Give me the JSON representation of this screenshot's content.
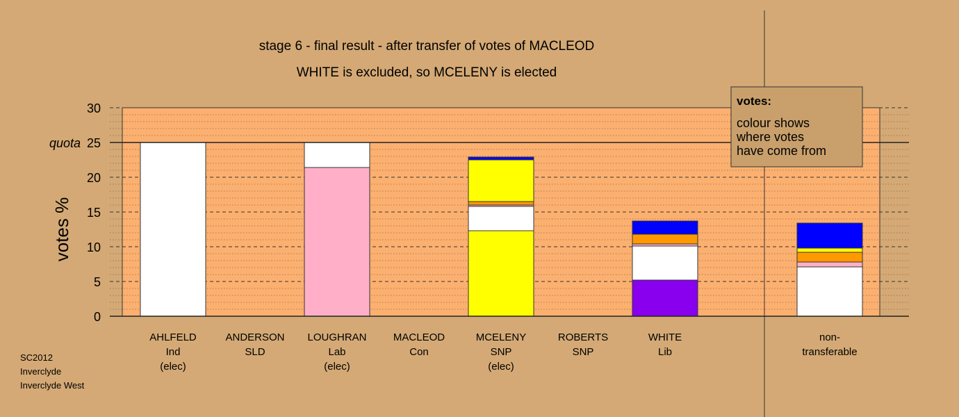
{
  "chart_data": {
    "type": "bar",
    "title": "stage 6 - final result - after transfer of votes of MACLEOD",
    "subtitle": "WHITE is excluded, so MCELENY is elected",
    "ylabel": "votes %",
    "ylim": [
      0,
      30
    ],
    "yticks": [
      0,
      5,
      10,
      15,
      20,
      25,
      30
    ],
    "quota": 25,
    "quota_label": "quota",
    "stacked": true,
    "grid": true,
    "categories": [
      {
        "name": "AHLFELD",
        "party": "Ind",
        "status": "(elec)"
      },
      {
        "name": "ANDERSON",
        "party": "SLD",
        "status": ""
      },
      {
        "name": "LOUGHRAN",
        "party": "Lab",
        "status": "(elec)"
      },
      {
        "name": "MACLEOD",
        "party": "Con",
        "status": ""
      },
      {
        "name": "MCELENY",
        "party": "SNP",
        "status": "(elec)"
      },
      {
        "name": "ROBERTS",
        "party": "SNP",
        "status": ""
      },
      {
        "name": "WHITE",
        "party": "Lib",
        "status": ""
      }
    ],
    "nontransferable_label": [
      "non-",
      "transferable"
    ],
    "stacks": [
      [
        {
          "value": 25.0,
          "color": "#ffffff"
        }
      ],
      [],
      [
        {
          "value": 21.4,
          "color": "#ffb0c8"
        },
        {
          "value": 3.6,
          "color": "#ffffff"
        }
      ],
      [],
      [
        {
          "value": 12.3,
          "color": "#ffff00"
        },
        {
          "value": 3.5,
          "color": "#ffffff"
        },
        {
          "value": 0.2,
          "color": "#ffb0c8"
        },
        {
          "value": 0.5,
          "color": "#ff9900"
        },
        {
          "value": 6.0,
          "color": "#ffff00"
        },
        {
          "value": 0.4,
          "color": "#0000ff"
        }
      ],
      [],
      [
        {
          "value": 5.2,
          "color": "#8800ee"
        },
        {
          "value": 4.9,
          "color": "#ffffff"
        },
        {
          "value": 0.3,
          "color": "#ffb0c8"
        },
        {
          "value": 1.4,
          "color": "#ff9900"
        },
        {
          "value": 1.9,
          "color": "#0000ff"
        }
      ]
    ],
    "nontransferable_stack": [
      {
        "value": 7.1,
        "color": "#ffffff"
      },
      {
        "value": 0.7,
        "color": "#ffb0c8"
      },
      {
        "value": 1.4,
        "color": "#ff9900"
      },
      {
        "value": 0.6,
        "color": "#ffff00"
      },
      {
        "value": 3.6,
        "color": "#0000ff"
      }
    ],
    "legend": {
      "title": "votes:",
      "lines": [
        "colour shows",
        "where votes",
        "have come from"
      ],
      "placement": "top-right"
    }
  },
  "footer": [
    "SC2012",
    "Inverclyde",
    "Inverclyde West"
  ],
  "colors": {
    "background": "#d4a975",
    "plot_background": "#fcb070",
    "legend_background": "#c9a06c"
  }
}
